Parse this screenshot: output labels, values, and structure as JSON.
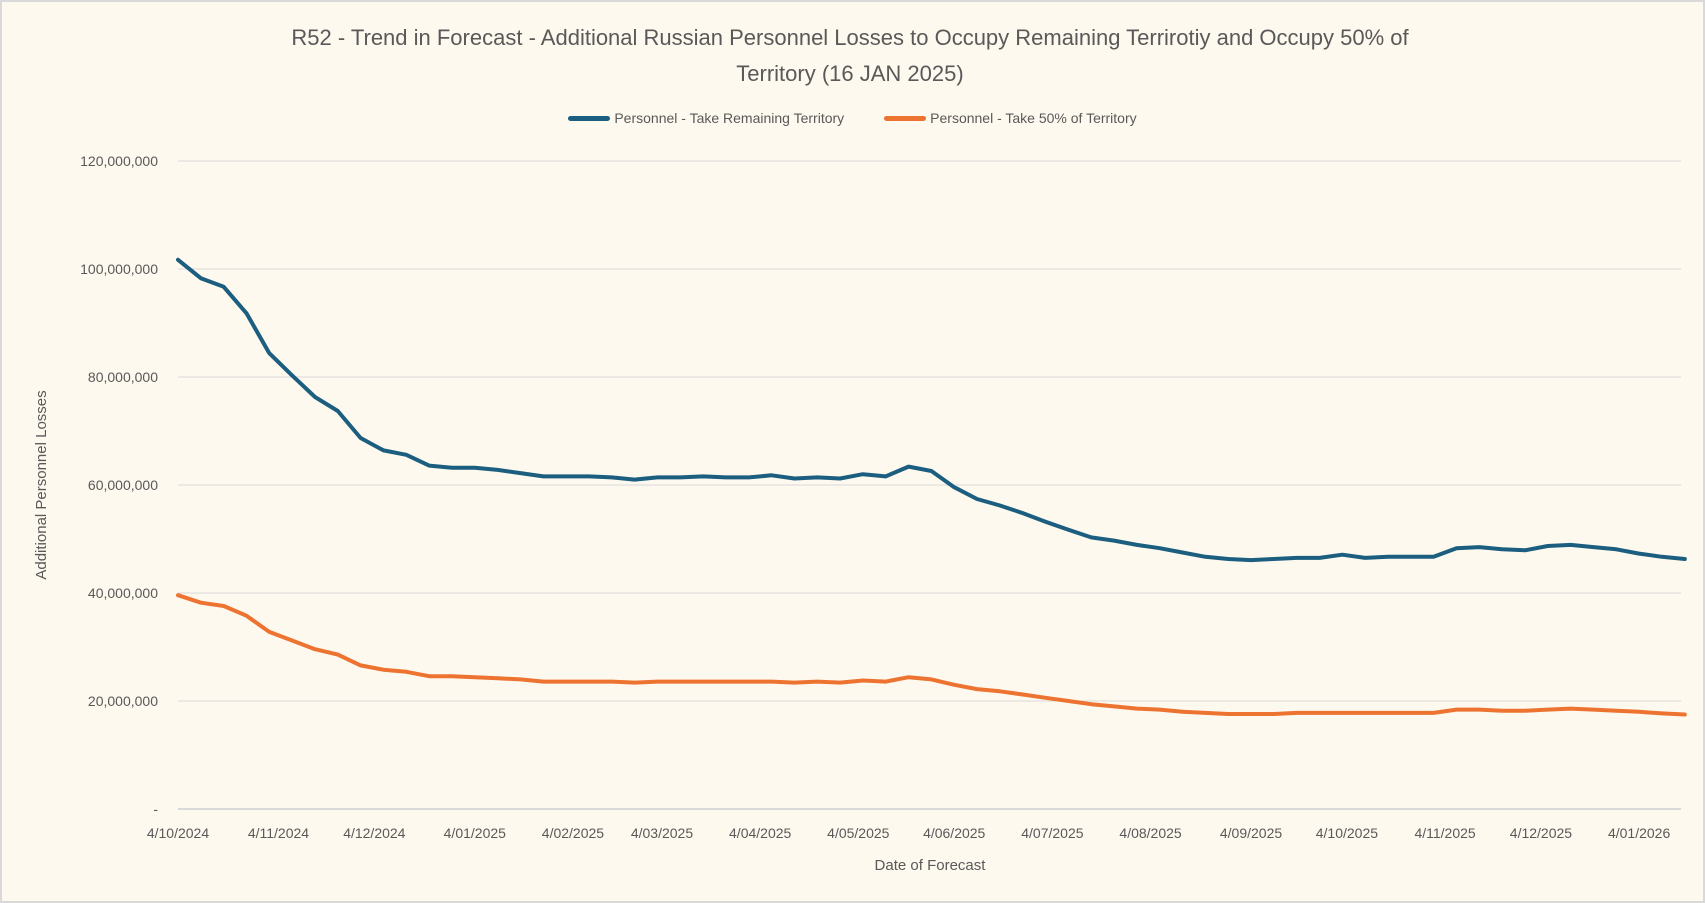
{
  "chart_data": {
    "type": "line",
    "title": "R52 - Trend in Forecast - Additional Russian Personnel Losses to Occupy Remaining Terrirotiy and Occupy 50% of Territory  (16 JAN 2025)",
    "title_lines": [
      "R52 - Trend in Forecast - Additional Russian Personnel Losses to Occupy Remaining Terrirotiy and Occupy 50% of",
      "Territory  (16 JAN 2025)"
    ],
    "xlabel": "Date of Forecast",
    "ylabel": "Additional Personnel Losses",
    "ylim": [
      0,
      120000000
    ],
    "yticks": [
      {
        "value": 0,
        "label": "-"
      },
      {
        "value": 20000000,
        "label": "20,000,000"
      },
      {
        "value": 40000000,
        "label": "40,000,000"
      },
      {
        "value": 60000000,
        "label": "60,000,000"
      },
      {
        "value": 80000000,
        "label": "80,000,000"
      },
      {
        "value": 100000000,
        "label": "100,000,000"
      },
      {
        "value": 120000000,
        "label": "120,000,000"
      }
    ],
    "xticks": [
      {
        "index": 0,
        "label": "4/10/2024"
      },
      {
        "index": 4.4,
        "label": "4/11/2024"
      },
      {
        "index": 8.6,
        "label": "4/12/2024"
      },
      {
        "index": 13,
        "label": "4/01/2025"
      },
      {
        "index": 17.3,
        "label": "4/02/2025"
      },
      {
        "index": 21.2,
        "label": "4/03/2025"
      },
      {
        "index": 25.5,
        "label": "4/04/2025"
      },
      {
        "index": 29.8,
        "label": "4/05/2025"
      },
      {
        "index": 34,
        "label": "4/06/2025"
      },
      {
        "index": 38.3,
        "label": "4/07/2025"
      },
      {
        "index": 42.6,
        "label": "4/08/2025"
      },
      {
        "index": 47,
        "label": "4/09/2025"
      },
      {
        "index": 51.2,
        "label": "4/10/2025"
      },
      {
        "index": 55.5,
        "label": "4/11/2025"
      },
      {
        "index": 59.7,
        "label": "4/12/2025"
      },
      {
        "index": 64,
        "label": "4/01/2026"
      }
    ],
    "grid": true,
    "legend_position": "top",
    "series": [
      {
        "name": "Personnel - Take Remaining Territory",
        "color": "#1b5e7f",
        "unit": "millions",
        "values": [
          101.7,
          98.3,
          96.7,
          91.8,
          84.4,
          80.3,
          76.3,
          73.7,
          68.7,
          66.4,
          65.6,
          63.6,
          63.2,
          63.2,
          62.8,
          62.2,
          61.6,
          61.6,
          61.6,
          61.4,
          61.0,
          61.4,
          61.4,
          61.6,
          61.4,
          61.4,
          61.8,
          61.2,
          61.4,
          61.2,
          62.0,
          61.6,
          63.4,
          62.6,
          59.6,
          57.4,
          56.2,
          54.8,
          53.2,
          51.7,
          50.3,
          49.7,
          48.9,
          48.3,
          47.5,
          46.7,
          46.3,
          46.1,
          46.3,
          46.5,
          46.5,
          47.1,
          46.5,
          46.7,
          46.7,
          46.7,
          48.3,
          48.5,
          48.1,
          47.9,
          48.7,
          48.9,
          48.5,
          48.1,
          47.3,
          46.7,
          46.3
        ]
      },
      {
        "name": "Personnel - Take 50% of Territory",
        "color": "#ed7331",
        "unit": "millions",
        "values": [
          39.6,
          38.2,
          37.6,
          35.8,
          32.8,
          31.2,
          29.6,
          28.6,
          26.6,
          25.8,
          25.4,
          24.6,
          24.6,
          24.4,
          24.2,
          24.0,
          23.6,
          23.6,
          23.6,
          23.6,
          23.4,
          23.6,
          23.6,
          23.6,
          23.6,
          23.6,
          23.6,
          23.4,
          23.6,
          23.4,
          23.8,
          23.6,
          24.4,
          24.0,
          23.0,
          22.2,
          21.8,
          21.2,
          20.6,
          20.0,
          19.4,
          19.0,
          18.6,
          18.4,
          18.0,
          17.8,
          17.6,
          17.6,
          17.6,
          17.8,
          17.8,
          17.8,
          17.8,
          17.8,
          17.8,
          17.8,
          18.4,
          18.4,
          18.2,
          18.2,
          18.4,
          18.6,
          18.4,
          18.2,
          18.0,
          17.7,
          17.5
        ]
      }
    ]
  }
}
